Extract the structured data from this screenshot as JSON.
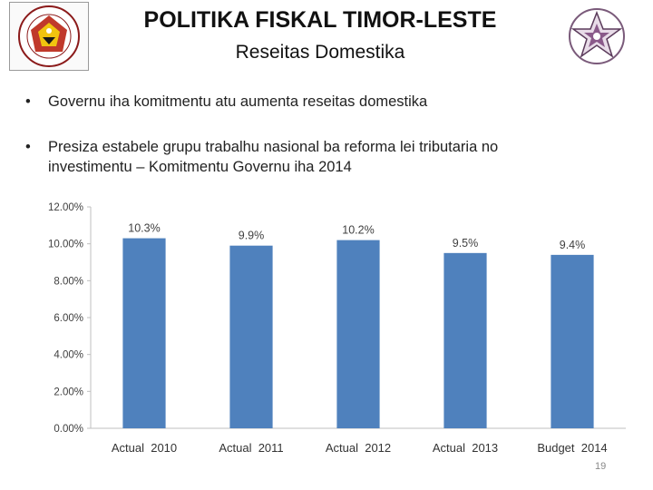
{
  "header": {
    "title": "POLITIKA FISKAL TIMOR-LESTE",
    "subtitle": "Reseitas Domestika"
  },
  "logos": {
    "left": "timor-leste-coat-of-arms",
    "right": "ministry-of-finance-star-seal"
  },
  "bullets": [
    {
      "marker": "•",
      "text": "Governu iha komitmentu atu aumenta reseitas domestika"
    },
    {
      "marker": "•",
      "text": "Presiza estabele grupu trabalhu nasional ba reforma lei tributaria no investimentu – Komitmentu Governu iha 2014"
    }
  ],
  "chart_data": {
    "type": "bar",
    "categories": [
      "Actual  2010",
      "Actual  2011",
      "Actual  2012",
      "Actual  2013",
      "Budget  2014"
    ],
    "values": [
      10.3,
      9.9,
      10.2,
      9.5,
      9.4
    ],
    "data_labels": [
      "10.3%",
      "9.9%",
      "10.2%",
      "9.5%",
      "9.4%"
    ],
    "ylim": [
      0,
      12
    ],
    "yticks": [
      0,
      2,
      4,
      6,
      8,
      10,
      12
    ],
    "ytick_labels": [
      "0.00%",
      "2.00%",
      "4.00%",
      "6.00%",
      "8.00%",
      "10.00%",
      "12.00%"
    ],
    "title": "",
    "xlabel": "",
    "ylabel": "",
    "grid": false,
    "bar_color": "#4f81bd"
  },
  "footer": {
    "page_number": "19"
  }
}
